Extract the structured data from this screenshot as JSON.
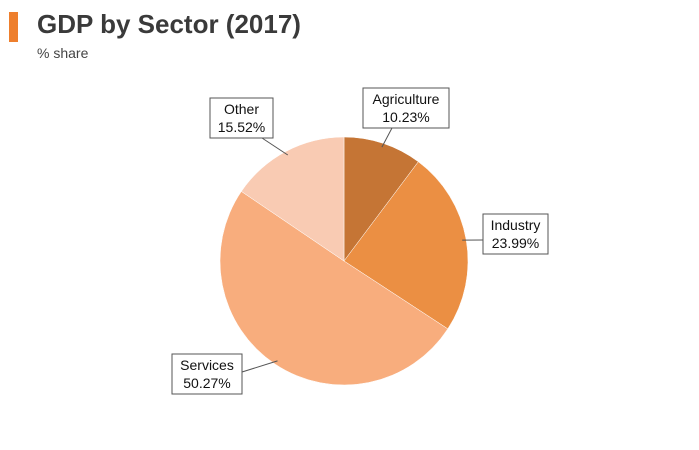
{
  "header": {
    "title": "GDP by Sector (2017)",
    "subtitle": "% share",
    "accent_color": "#ee7f2d"
  },
  "chart_data": {
    "type": "pie",
    "title": "GDP by Sector (2017)",
    "subtitle": "% share",
    "start_angle_deg": 0,
    "direction": "clockwise",
    "slices": [
      {
        "name": "Agriculture",
        "value": 10.23,
        "label": "10.23%",
        "color": "#c57535"
      },
      {
        "name": "Industry",
        "value": 23.99,
        "label": "23.99%",
        "color": "#eb8f43"
      },
      {
        "name": "Services",
        "value": 50.27,
        "label": "50.27%",
        "color": "#f8ad7d"
      },
      {
        "name": "Other",
        "value": 15.52,
        "label": "15.52%",
        "color": "#f9cbb3"
      }
    ],
    "legend": "none",
    "data_labels": "callout boxes outside slices"
  }
}
